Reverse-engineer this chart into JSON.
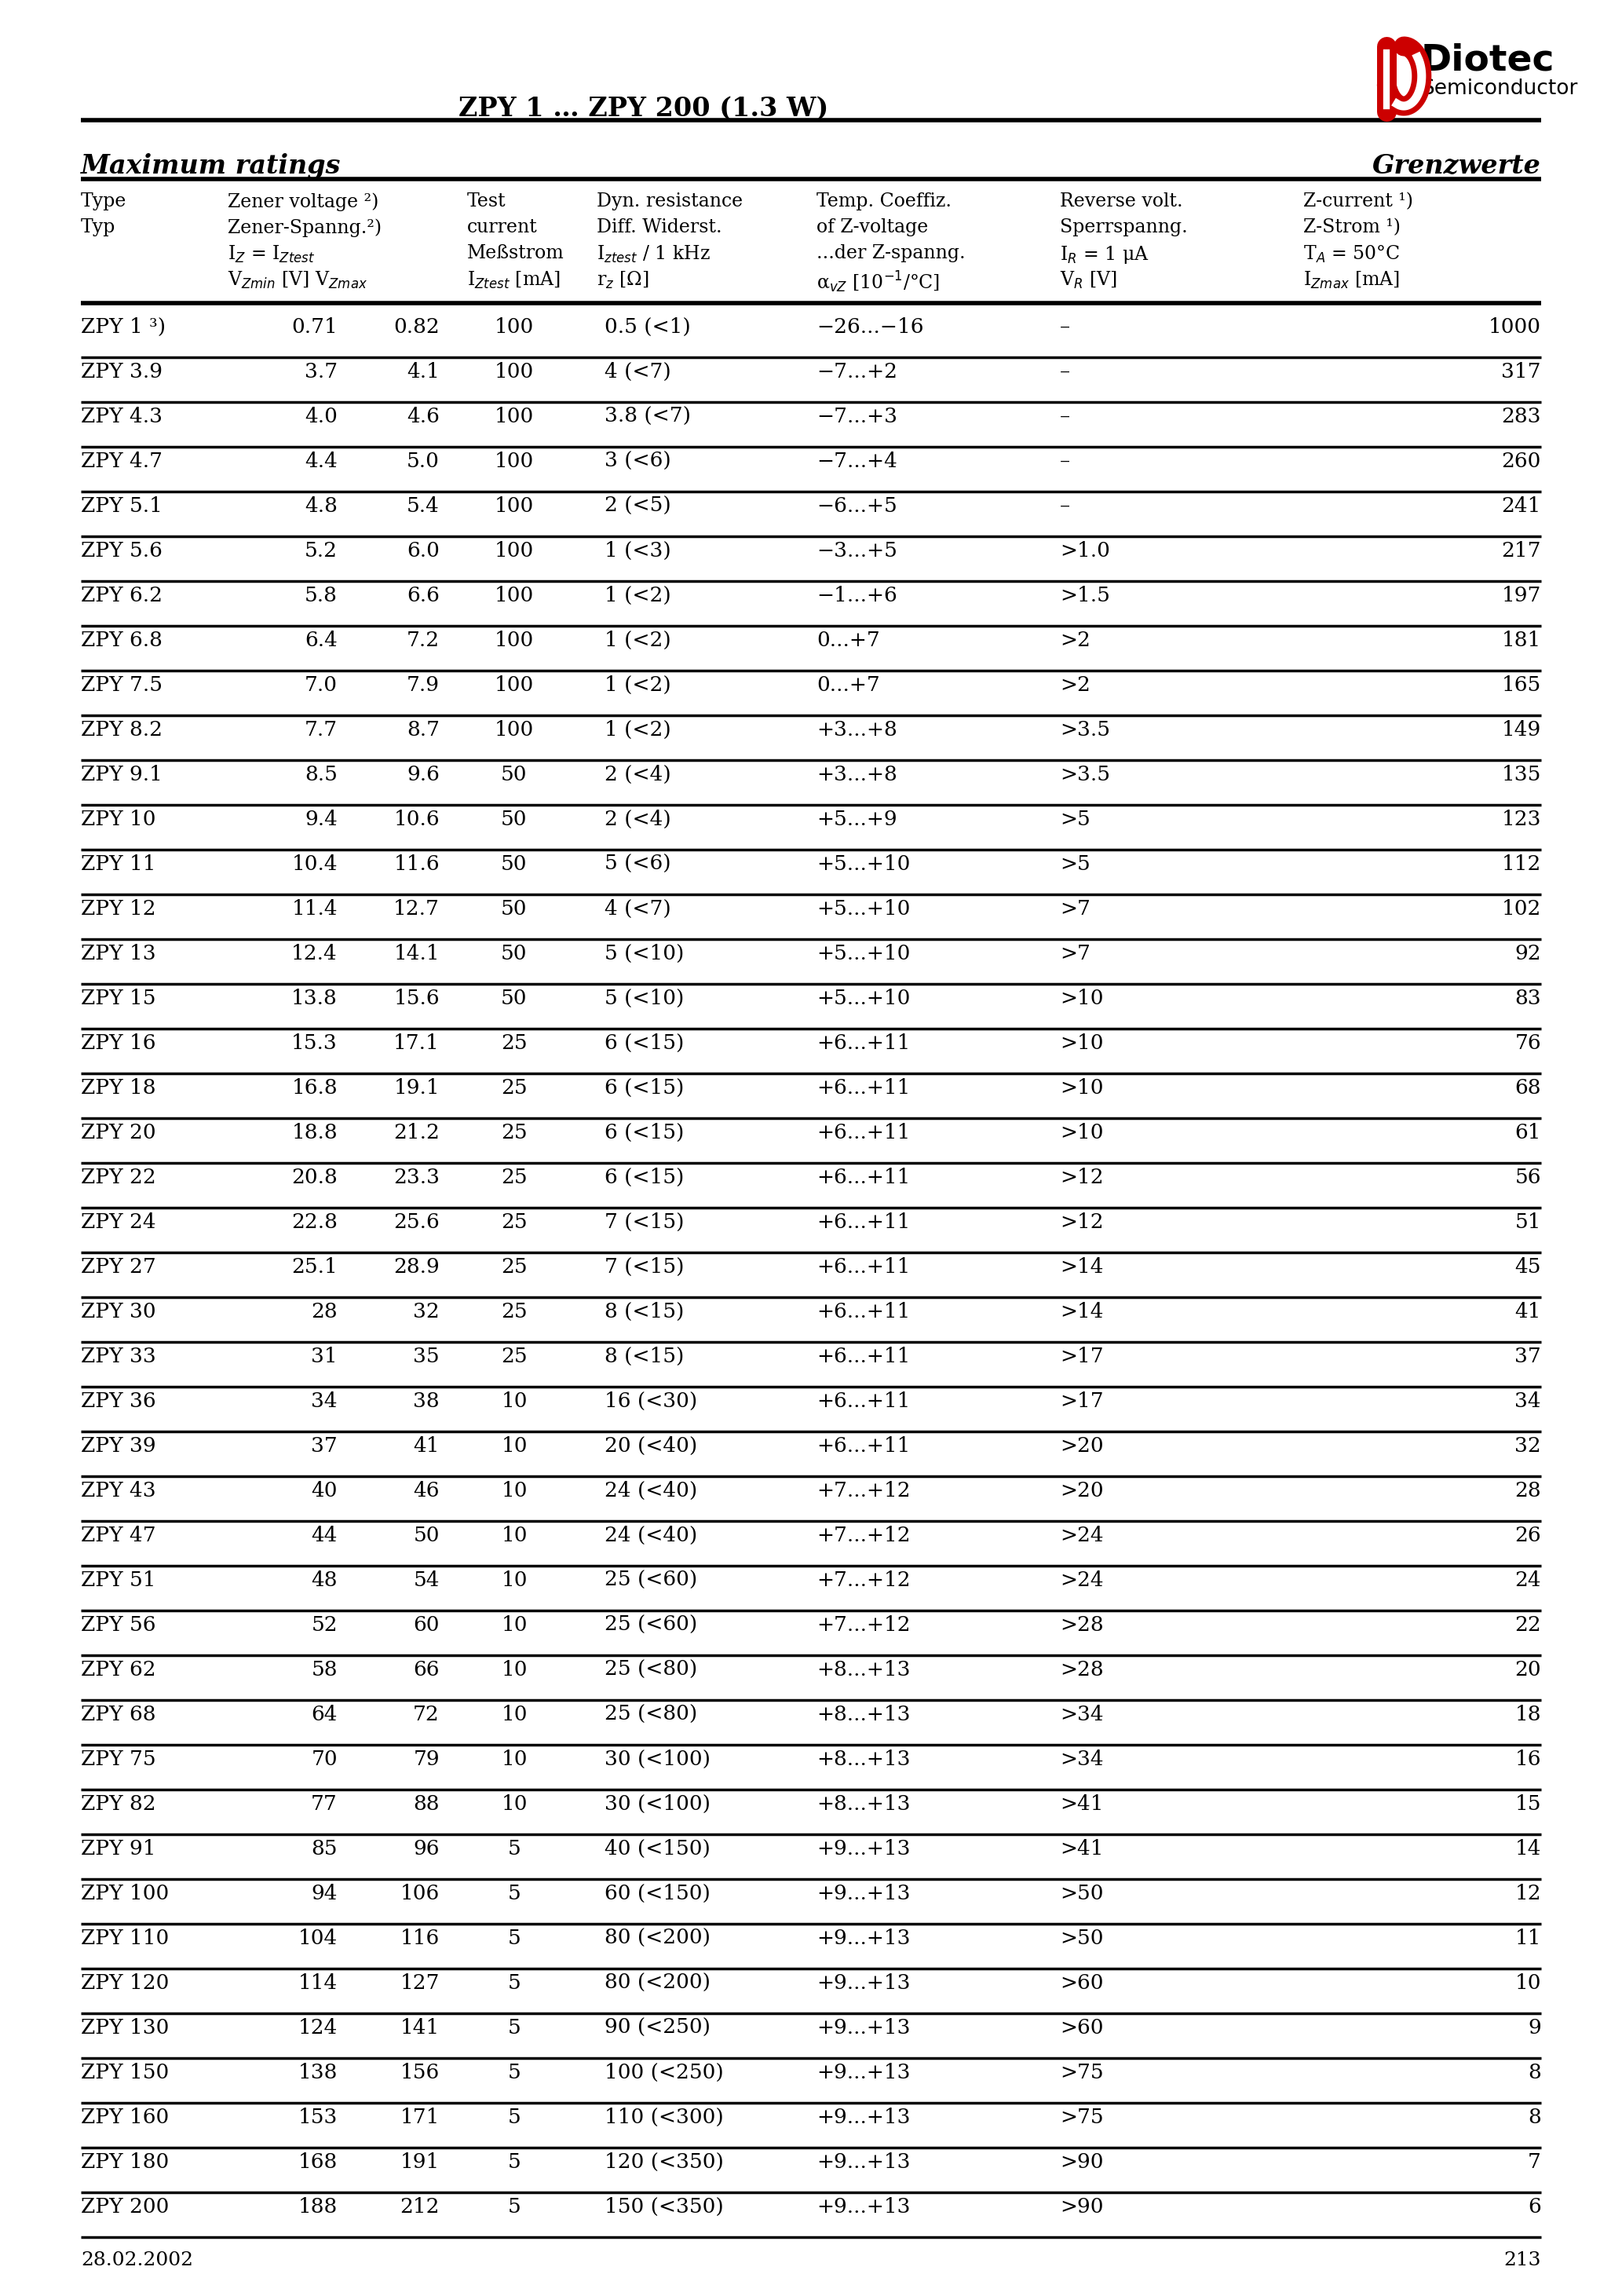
{
  "title": "ZPY 1 … ZPY 200 (1.3 W)",
  "page_number": "213",
  "date": "28.02.2002",
  "header_left": "Maximum ratings",
  "header_right": "Grenzwerte",
  "rows": [
    [
      "ZPY 1 ³)",
      "0.71",
      "0.82",
      "100",
      "0.5 (<1)",
      "−26...−16",
      "–",
      "1000"
    ],
    [
      "ZPY 3.9",
      "3.7",
      "4.1",
      "100",
      "4 (<7)",
      "−7...+2",
      "–",
      "317"
    ],
    [
      "ZPY 4.3",
      "4.0",
      "4.6",
      "100",
      "3.8 (<7)",
      "−7...+3",
      "–",
      "283"
    ],
    [
      "ZPY 4.7",
      "4.4",
      "5.0",
      "100",
      "3 (<6)",
      "−7...+4",
      "–",
      "260"
    ],
    [
      "ZPY 5.1",
      "4.8",
      "5.4",
      "100",
      "2 (<5)",
      "−6...+5",
      "–",
      "241"
    ],
    [
      "ZPY 5.6",
      "5.2",
      "6.0",
      "100",
      "1 (<3)",
      "−3...+5",
      ">1.0",
      "217"
    ],
    [
      "ZPY 6.2",
      "5.8",
      "6.6",
      "100",
      "1 (<2)",
      "−1...+6",
      ">1.5",
      "197"
    ],
    [
      "ZPY 6.8",
      "6.4",
      "7.2",
      "100",
      "1 (<2)",
      "0...+7",
      ">2",
      "181"
    ],
    [
      "ZPY 7.5",
      "7.0",
      "7.9",
      "100",
      "1 (<2)",
      "0...+7",
      ">2",
      "165"
    ],
    [
      "ZPY 8.2",
      "7.7",
      "8.7",
      "100",
      "1 (<2)",
      "+3...+8",
      ">3.5",
      "149"
    ],
    [
      "ZPY 9.1",
      "8.5",
      "9.6",
      "50",
      "2 (<4)",
      "+3...+8",
      ">3.5",
      "135"
    ],
    [
      "ZPY 10",
      "9.4",
      "10.6",
      "50",
      "2 (<4)",
      "+5...+9",
      ">5",
      "123"
    ],
    [
      "ZPY 11",
      "10.4",
      "11.6",
      "50",
      "5 (<6)",
      "+5...+10",
      ">5",
      "112"
    ],
    [
      "ZPY 12",
      "11.4",
      "12.7",
      "50",
      "4 (<7)",
      "+5...+10",
      ">7",
      "102"
    ],
    [
      "ZPY 13",
      "12.4",
      "14.1",
      "50",
      "5 (<10)",
      "+5...+10",
      ">7",
      "92"
    ],
    [
      "ZPY 15",
      "13.8",
      "15.6",
      "50",
      "5 (<10)",
      "+5...+10",
      ">10",
      "83"
    ],
    [
      "ZPY 16",
      "15.3",
      "17.1",
      "25",
      "6 (<15)",
      "+6...+11",
      ">10",
      "76"
    ],
    [
      "ZPY 18",
      "16.8",
      "19.1",
      "25",
      "6 (<15)",
      "+6...+11",
      ">10",
      "68"
    ],
    [
      "ZPY 20",
      "18.8",
      "21.2",
      "25",
      "6 (<15)",
      "+6...+11",
      ">10",
      "61"
    ],
    [
      "ZPY 22",
      "20.8",
      "23.3",
      "25",
      "6 (<15)",
      "+6...+11",
      ">12",
      "56"
    ],
    [
      "ZPY 24",
      "22.8",
      "25.6",
      "25",
      "7 (<15)",
      "+6...+11",
      ">12",
      "51"
    ],
    [
      "ZPY 27",
      "25.1",
      "28.9",
      "25",
      "7 (<15)",
      "+6...+11",
      ">14",
      "45"
    ],
    [
      "ZPY 30",
      "28",
      "32",
      "25",
      "8 (<15)",
      "+6...+11",
      ">14",
      "41"
    ],
    [
      "ZPY 33",
      "31",
      "35",
      "25",
      "8 (<15)",
      "+6...+11",
      ">17",
      "37"
    ],
    [
      "ZPY 36",
      "34",
      "38",
      "10",
      "16 (<30)",
      "+6...+11",
      ">17",
      "34"
    ],
    [
      "ZPY 39",
      "37",
      "41",
      "10",
      "20 (<40)",
      "+6...+11",
      ">20",
      "32"
    ],
    [
      "ZPY 43",
      "40",
      "46",
      "10",
      "24 (<40)",
      "+7...+12",
      ">20",
      "28"
    ],
    [
      "ZPY 47",
      "44",
      "50",
      "10",
      "24 (<40)",
      "+7...+12",
      ">24",
      "26"
    ],
    [
      "ZPY 51",
      "48",
      "54",
      "10",
      "25 (<60)",
      "+7...+12",
      ">24",
      "24"
    ],
    [
      "ZPY 56",
      "52",
      "60",
      "10",
      "25 (<60)",
      "+7...+12",
      ">28",
      "22"
    ],
    [
      "ZPY 62",
      "58",
      "66",
      "10",
      "25 (<80)",
      "+8...+13",
      ">28",
      "20"
    ],
    [
      "ZPY 68",
      "64",
      "72",
      "10",
      "25 (<80)",
      "+8...+13",
      ">34",
      "18"
    ],
    [
      "ZPY 75",
      "70",
      "79",
      "10",
      "30 (<100)",
      "+8...+13",
      ">34",
      "16"
    ],
    [
      "ZPY 82",
      "77",
      "88",
      "10",
      "30 (<100)",
      "+8...+13",
      ">41",
      "15"
    ],
    [
      "ZPY 91",
      "85",
      "96",
      "5",
      "40 (<150)",
      "+9...+13",
      ">41",
      "14"
    ],
    [
      "ZPY 100",
      "94",
      "106",
      "5",
      "60 (<150)",
      "+9...+13",
      ">50",
      "12"
    ],
    [
      "ZPY 110",
      "104",
      "116",
      "5",
      "80 (<200)",
      "+9...+13",
      ">50",
      "11"
    ],
    [
      "ZPY 120",
      "114",
      "127",
      "5",
      "80 (<200)",
      "+9...+13",
      ">60",
      "10"
    ],
    [
      "ZPY 130",
      "124",
      "141",
      "5",
      "90 (<250)",
      "+9...+13",
      ">60",
      "9"
    ],
    [
      "ZPY 150",
      "138",
      "156",
      "5",
      "100 (<250)",
      "+9...+13",
      ">75",
      "8"
    ],
    [
      "ZPY 160",
      "153",
      "171",
      "5",
      "110 (<300)",
      "+9...+13",
      ">75",
      "8"
    ],
    [
      "ZPY 180",
      "168",
      "191",
      "5",
      "120 (<350)",
      "+9...+13",
      ">90",
      "7"
    ],
    [
      "ZPY 200",
      "188",
      "212",
      "5",
      "150 (<350)",
      "+9...+13",
      ">90",
      "6"
    ]
  ]
}
